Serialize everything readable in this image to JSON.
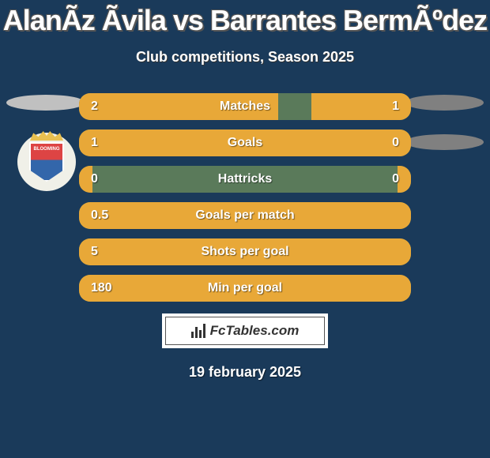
{
  "title": "AlanÃz Ãvila vs Barrantes BermÃºdez",
  "subtitle": "Club competitions, Season 2025",
  "date": "19 february 2025",
  "fctables_label": "FcTables.com",
  "background_color": "#1a3a5a",
  "colors": {
    "left_bar": "#e8a838",
    "right_bar": "#e8a838",
    "row_bg": "#5a7a5a"
  },
  "stats": [
    {
      "label": "Matches",
      "left_val": "2",
      "right_val": "1",
      "left_pct": 60,
      "right_pct": 30
    },
    {
      "label": "Goals",
      "left_val": "1",
      "right_val": "0",
      "left_pct": 80,
      "right_pct": 20
    },
    {
      "label": "Hattricks",
      "left_val": "0",
      "right_val": "0",
      "left_pct": 4,
      "right_pct": 4
    },
    {
      "label": "Goals per match",
      "left_val": "0.5",
      "right_val": "",
      "left_pct": 100,
      "right_pct": 0
    },
    {
      "label": "Shots per goal",
      "left_val": "5",
      "right_val": "",
      "left_pct": 100,
      "right_pct": 0
    },
    {
      "label": "Min per goal",
      "left_val": "180",
      "right_val": "",
      "left_pct": 100,
      "right_pct": 0
    }
  ],
  "badge": {
    "name": "BLOOMING",
    "colors": {
      "top": "#d44",
      "bottom": "#36a",
      "crown": "#e8c050"
    }
  }
}
